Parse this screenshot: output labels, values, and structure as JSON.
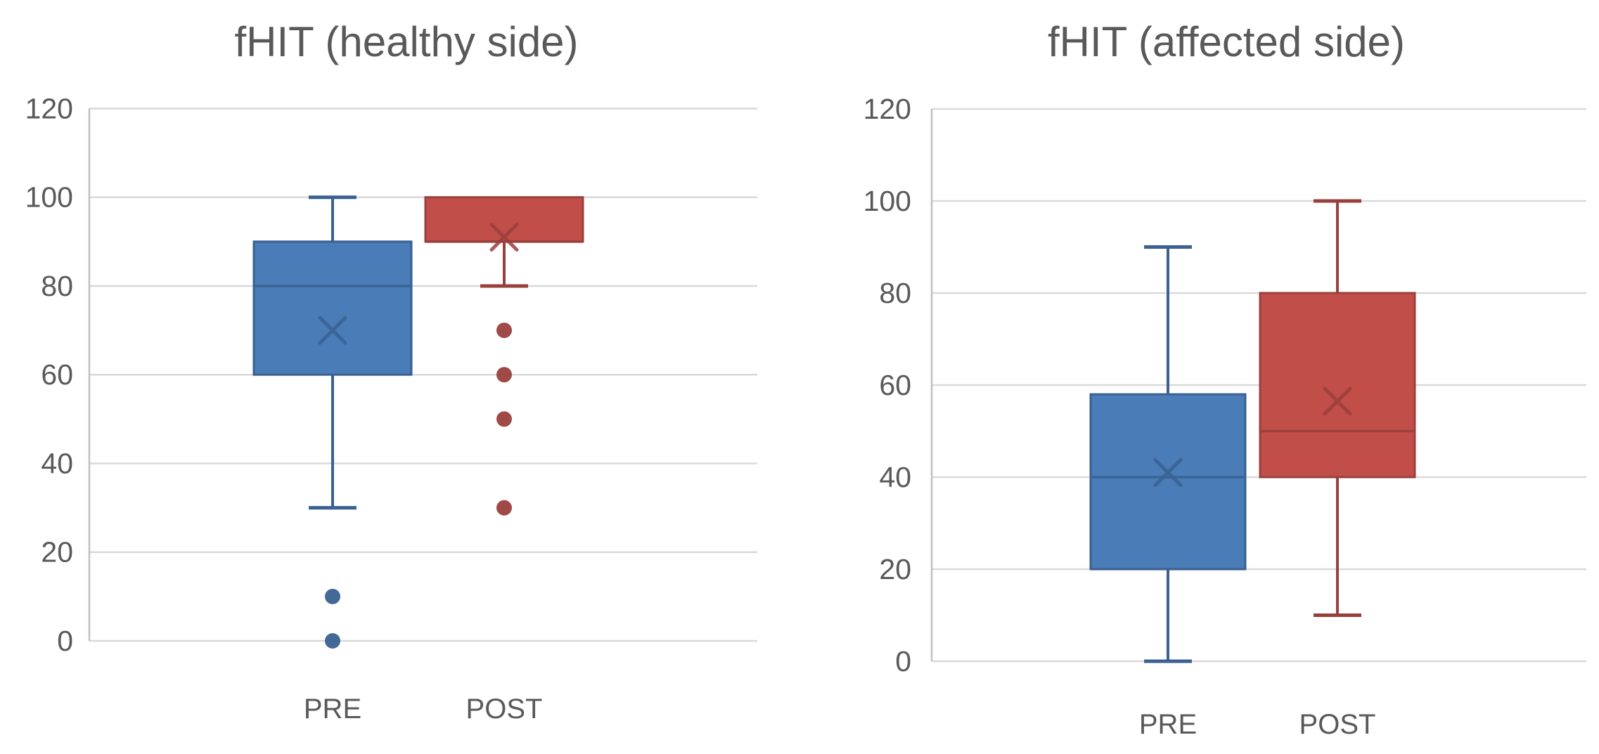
{
  "figure": {
    "description": "Two box-and-whisker plots comparing PRE and POST measurements",
    "background": "#FFFFFF"
  },
  "palette": {
    "gridline": "#D9D9D9",
    "axis_line": "#BFBFBF",
    "label_text": "#595959",
    "pre_fill": "#4A7CB8",
    "pre_line": "#3A6191",
    "post_fill": "#C24E4A",
    "post_line": "#9A403C"
  },
  "chart_data": [
    {
      "type": "box",
      "title": "fHIT (healthy side)",
      "categories": [
        "PRE",
        "POST"
      ],
      "xlabel": "",
      "ylabel": "",
      "ylim": [
        0,
        120
      ],
      "yticks": [
        0,
        20,
        40,
        60,
        80,
        100,
        120
      ],
      "grid": true,
      "legend": "none",
      "series": [
        {
          "name": "PRE",
          "fill": "#4A7CB8",
          "line": "#3A6191",
          "whisker_low": 30,
          "q1": 60,
          "median": 80,
          "q3": 90,
          "whisker_high": 100,
          "mean": 70,
          "outliers": [
            10,
            0
          ]
        },
        {
          "name": "POST",
          "fill": "#C24E4A",
          "line": "#9A403C",
          "whisker_low": 80,
          "q1": 90,
          "median": 90,
          "q3": 100,
          "whisker_high": 100,
          "mean": 91,
          "outliers": [
            70,
            60,
            50,
            30
          ]
        }
      ]
    },
    {
      "type": "box",
      "title": "fHIT (affected side)",
      "categories": [
        "PRE",
        "POST"
      ],
      "xlabel": "",
      "ylabel": "",
      "ylim": [
        0,
        120
      ],
      "yticks": [
        0,
        20,
        40,
        60,
        80,
        100,
        120
      ],
      "grid": true,
      "legend": "none",
      "series": [
        {
          "name": "PRE",
          "fill": "#4A7CB8",
          "line": "#3A6191",
          "whisker_low": 0,
          "q1": 20,
          "median": 40,
          "q3": 58,
          "whisker_high": 90,
          "mean": 41,
          "outliers": []
        },
        {
          "name": "POST",
          "fill": "#C24E4A",
          "line": "#9A403C",
          "whisker_low": 10,
          "q1": 40,
          "median": 50,
          "q3": 80,
          "whisker_high": 100,
          "mean": 56.5,
          "outliers": []
        }
      ]
    }
  ]
}
